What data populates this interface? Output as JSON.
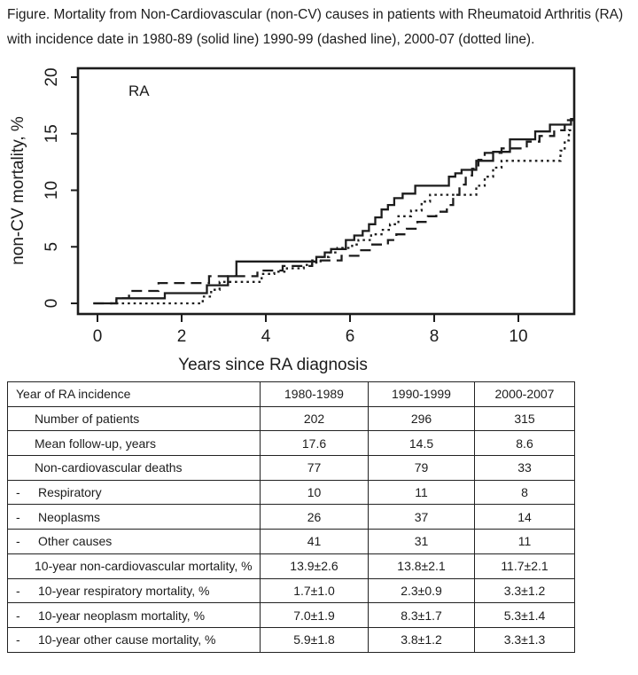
{
  "caption": {
    "line1": "Figure. Mortality from Non-Cardiovascular (non-CV) causes in patients with Rheumatoid Arthritis (RA)",
    "line2": "with incidence date in 1980-89 (solid line) 1990-99 (dashed line), 2000-07 (dotted line)."
  },
  "chart_data": {
    "type": "line",
    "subtype": "step-cumulative-incidence",
    "annotation": "RA",
    "xlabel": "Years since RA diagnosis",
    "ylabel": "non-CV mortality, %",
    "xlim": [
      -0.46,
      11.33
    ],
    "ylim": [
      -1.2,
      20.8
    ],
    "xticks": [
      0,
      2,
      4,
      6,
      8,
      10
    ],
    "yticks": [
      0,
      5,
      10,
      15,
      20
    ],
    "grid": false,
    "legend": "none (line styles identified in caption)",
    "series": [
      {
        "name": "1980-89",
        "style": "solid",
        "steps": [
          [
            -0.1,
            0
          ],
          [
            0.45,
            0.45
          ],
          [
            1.6,
            0.9
          ],
          [
            2.6,
            1.6
          ],
          [
            3.1,
            2.4
          ],
          [
            3.3,
            3.7
          ],
          [
            5.2,
            4.1
          ],
          [
            5.4,
            4.5
          ],
          [
            5.55,
            4.8
          ],
          [
            5.9,
            5.6
          ],
          [
            6.1,
            6.0
          ],
          [
            6.3,
            6.4
          ],
          [
            6.45,
            7.0
          ],
          [
            6.6,
            7.6
          ],
          [
            6.75,
            8.3
          ],
          [
            6.9,
            8.7
          ],
          [
            7.05,
            9.3
          ],
          [
            7.25,
            9.7
          ],
          [
            7.55,
            10.4
          ],
          [
            8.35,
            11.2
          ],
          [
            8.5,
            11.5
          ],
          [
            8.65,
            11.8
          ],
          [
            9.0,
            12.6
          ],
          [
            9.4,
            13.4
          ],
          [
            9.8,
            14.5
          ],
          [
            10.4,
            15.2
          ],
          [
            10.75,
            15.8
          ],
          [
            11.25,
            16.3
          ]
        ]
      },
      {
        "name": "1990-99",
        "style": "dashed",
        "steps": [
          [
            -0.1,
            0
          ],
          [
            0.45,
            0.45
          ],
          [
            0.75,
            1.1
          ],
          [
            1.45,
            1.8
          ],
          [
            2.65,
            2.4
          ],
          [
            3.8,
            2.9
          ],
          [
            4.4,
            3.3
          ],
          [
            5.1,
            3.8
          ],
          [
            5.8,
            4.2
          ],
          [
            6.2,
            4.7
          ],
          [
            6.5,
            5.2
          ],
          [
            6.9,
            5.6
          ],
          [
            7.1,
            6.1
          ],
          [
            7.35,
            6.6
          ],
          [
            7.6,
            7.2
          ],
          [
            7.85,
            7.7
          ],
          [
            8.05,
            8.1
          ],
          [
            8.3,
            8.7
          ],
          [
            8.45,
            9.6
          ],
          [
            8.6,
            10.5
          ],
          [
            8.75,
            11.3
          ],
          [
            8.9,
            11.9
          ],
          [
            9.05,
            12.7
          ],
          [
            9.2,
            13.3
          ],
          [
            9.6,
            13.7
          ],
          [
            10.2,
            14.3
          ],
          [
            10.5,
            14.8
          ],
          [
            10.85,
            15.3
          ],
          [
            11.1,
            16.2
          ]
        ]
      },
      {
        "name": "2000-07",
        "style": "dotted",
        "steps": [
          [
            0.3,
            0
          ],
          [
            2.5,
            0.6
          ],
          [
            2.7,
            1.2
          ],
          [
            2.9,
            1.9
          ],
          [
            3.9,
            2.6
          ],
          [
            4.2,
            2.8
          ],
          [
            4.5,
            3.1
          ],
          [
            4.9,
            3.4
          ],
          [
            5.1,
            3.6
          ],
          [
            5.3,
            4.1
          ],
          [
            5.5,
            4.5
          ],
          [
            5.7,
            4.9
          ],
          [
            6.05,
            5.2
          ],
          [
            6.2,
            5.6
          ],
          [
            6.5,
            6.1
          ],
          [
            6.75,
            6.5
          ],
          [
            6.95,
            7.0
          ],
          [
            7.15,
            7.7
          ],
          [
            7.45,
            8.2
          ],
          [
            7.7,
            9.0
          ],
          [
            7.9,
            9.6
          ],
          [
            9.0,
            10.4
          ],
          [
            9.2,
            11.2
          ],
          [
            9.4,
            12.0
          ],
          [
            9.6,
            12.6
          ],
          [
            11.0,
            13.5
          ],
          [
            11.1,
            14.4
          ],
          [
            11.2,
            15.3
          ]
        ]
      }
    ]
  },
  "table": {
    "columns": [
      "Year of RA incidence",
      "1980-1989",
      "1990-1999",
      "2000-2007"
    ],
    "rows": [
      {
        "dash": false,
        "label": "Number of patients",
        "values": [
          "202",
          "296",
          "315"
        ]
      },
      {
        "dash": false,
        "label": "Mean follow-up, years",
        "values": [
          "17.6",
          "14.5",
          "8.6"
        ]
      },
      {
        "dash": false,
        "label": "Non-cardiovascular deaths",
        "values": [
          "77",
          "79",
          "33"
        ]
      },
      {
        "dash": true,
        "label": "Respiratory",
        "values": [
          "10",
          "11",
          "8"
        ]
      },
      {
        "dash": true,
        "label": "Neoplasms",
        "values": [
          "26",
          "37",
          "14"
        ]
      },
      {
        "dash": true,
        "label": "Other causes",
        "values": [
          "41",
          "31",
          "11"
        ]
      },
      {
        "dash": false,
        "label": "10-year non-cardiovascular mortality, %",
        "values": [
          "13.9±2.6",
          "13.8±2.1",
          "11.7±2.1"
        ]
      },
      {
        "dash": true,
        "label": "10-year respiratory mortality, %",
        "values": [
          "1.7±1.0",
          "2.3±0.9",
          "3.3±1.2"
        ]
      },
      {
        "dash": true,
        "label": "10-year neoplasm mortality, %",
        "values": [
          "7.0±1.9",
          "8.3±1.7",
          "5.3±1.4"
        ]
      },
      {
        "dash": true,
        "label": "10-year other cause mortality, %",
        "values": [
          "5.9±1.8",
          "3.8±1.2",
          "3.3±1.3"
        ]
      }
    ]
  }
}
